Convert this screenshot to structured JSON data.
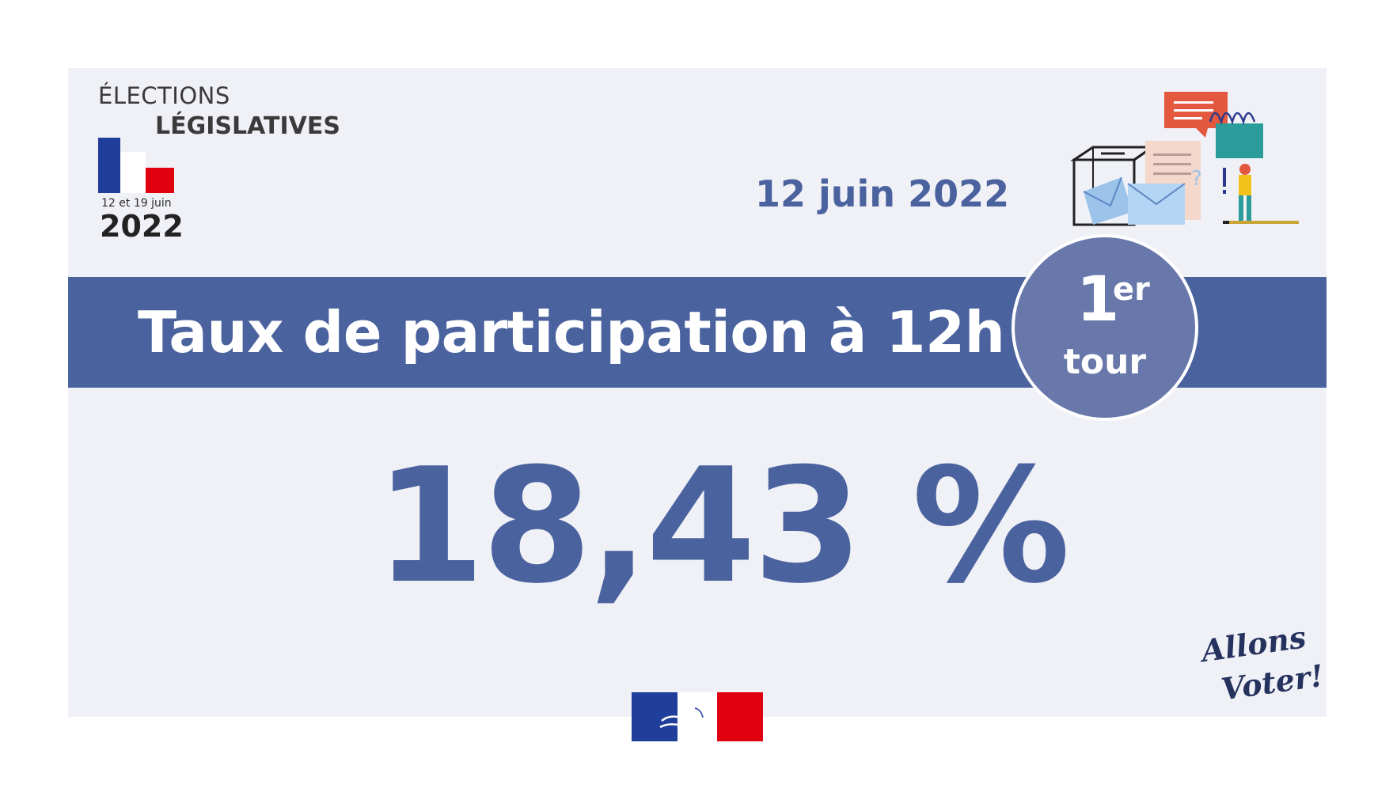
{
  "logo": {
    "line1": "ÉLECTIONS",
    "line2": "LÉGISLATIVES",
    "dates": "12 et 19 juin",
    "year": "2022"
  },
  "date": "12 juin 2022",
  "banner": {
    "title": "Taux de participation à 12h"
  },
  "round": {
    "number": "1",
    "suffix": "er",
    "word": "tour"
  },
  "turnout": {
    "value": "18,43 %"
  },
  "slogan": {
    "line1": "Allons",
    "line2": "Voter!"
  },
  "colors": {
    "primary_blue": "#4a629e",
    "badge_blue": "#6878ab",
    "card_background": "#f0f1f7",
    "flag_blue": "#1f3f9a",
    "flag_red": "#e1000f"
  },
  "icons": [
    "french-flag-icon",
    "ballot-box-icon",
    "speech-bubble-icon",
    "envelope-icon",
    "marianne-logo"
  ]
}
